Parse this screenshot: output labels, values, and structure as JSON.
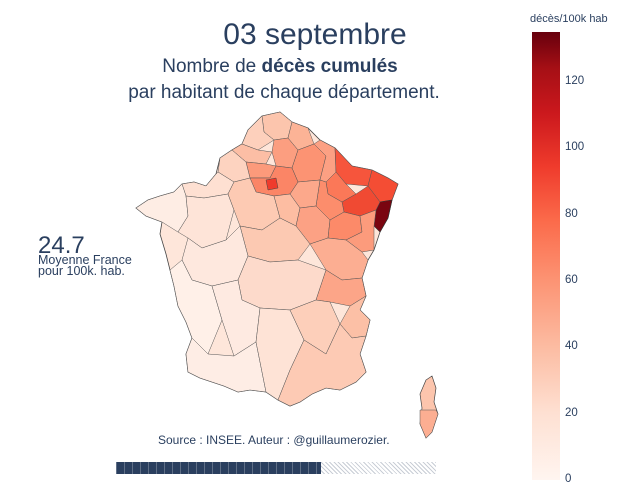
{
  "title": {
    "date": "03 septembre",
    "line1_prefix": "Nombre de ",
    "line1_bold": "décès cumulés",
    "line2": "par habitant de chaque département."
  },
  "average": {
    "value": "24.7",
    "label_line1": "Moyenne France",
    "label_line2": "pour 100k. hab."
  },
  "source": "Source : INSEE. Auteur : @guillaumerozier.",
  "progress": 0.64,
  "colorbar": {
    "title": "décès/100k hab",
    "ticks": [
      "0",
      "20",
      "40",
      "60",
      "80",
      "100",
      "120"
    ],
    "max_value": 135
  },
  "colors": {
    "text": "#2a3f5f",
    "scale_low": "#fff5f0",
    "scale_high": "#67000d"
  }
}
